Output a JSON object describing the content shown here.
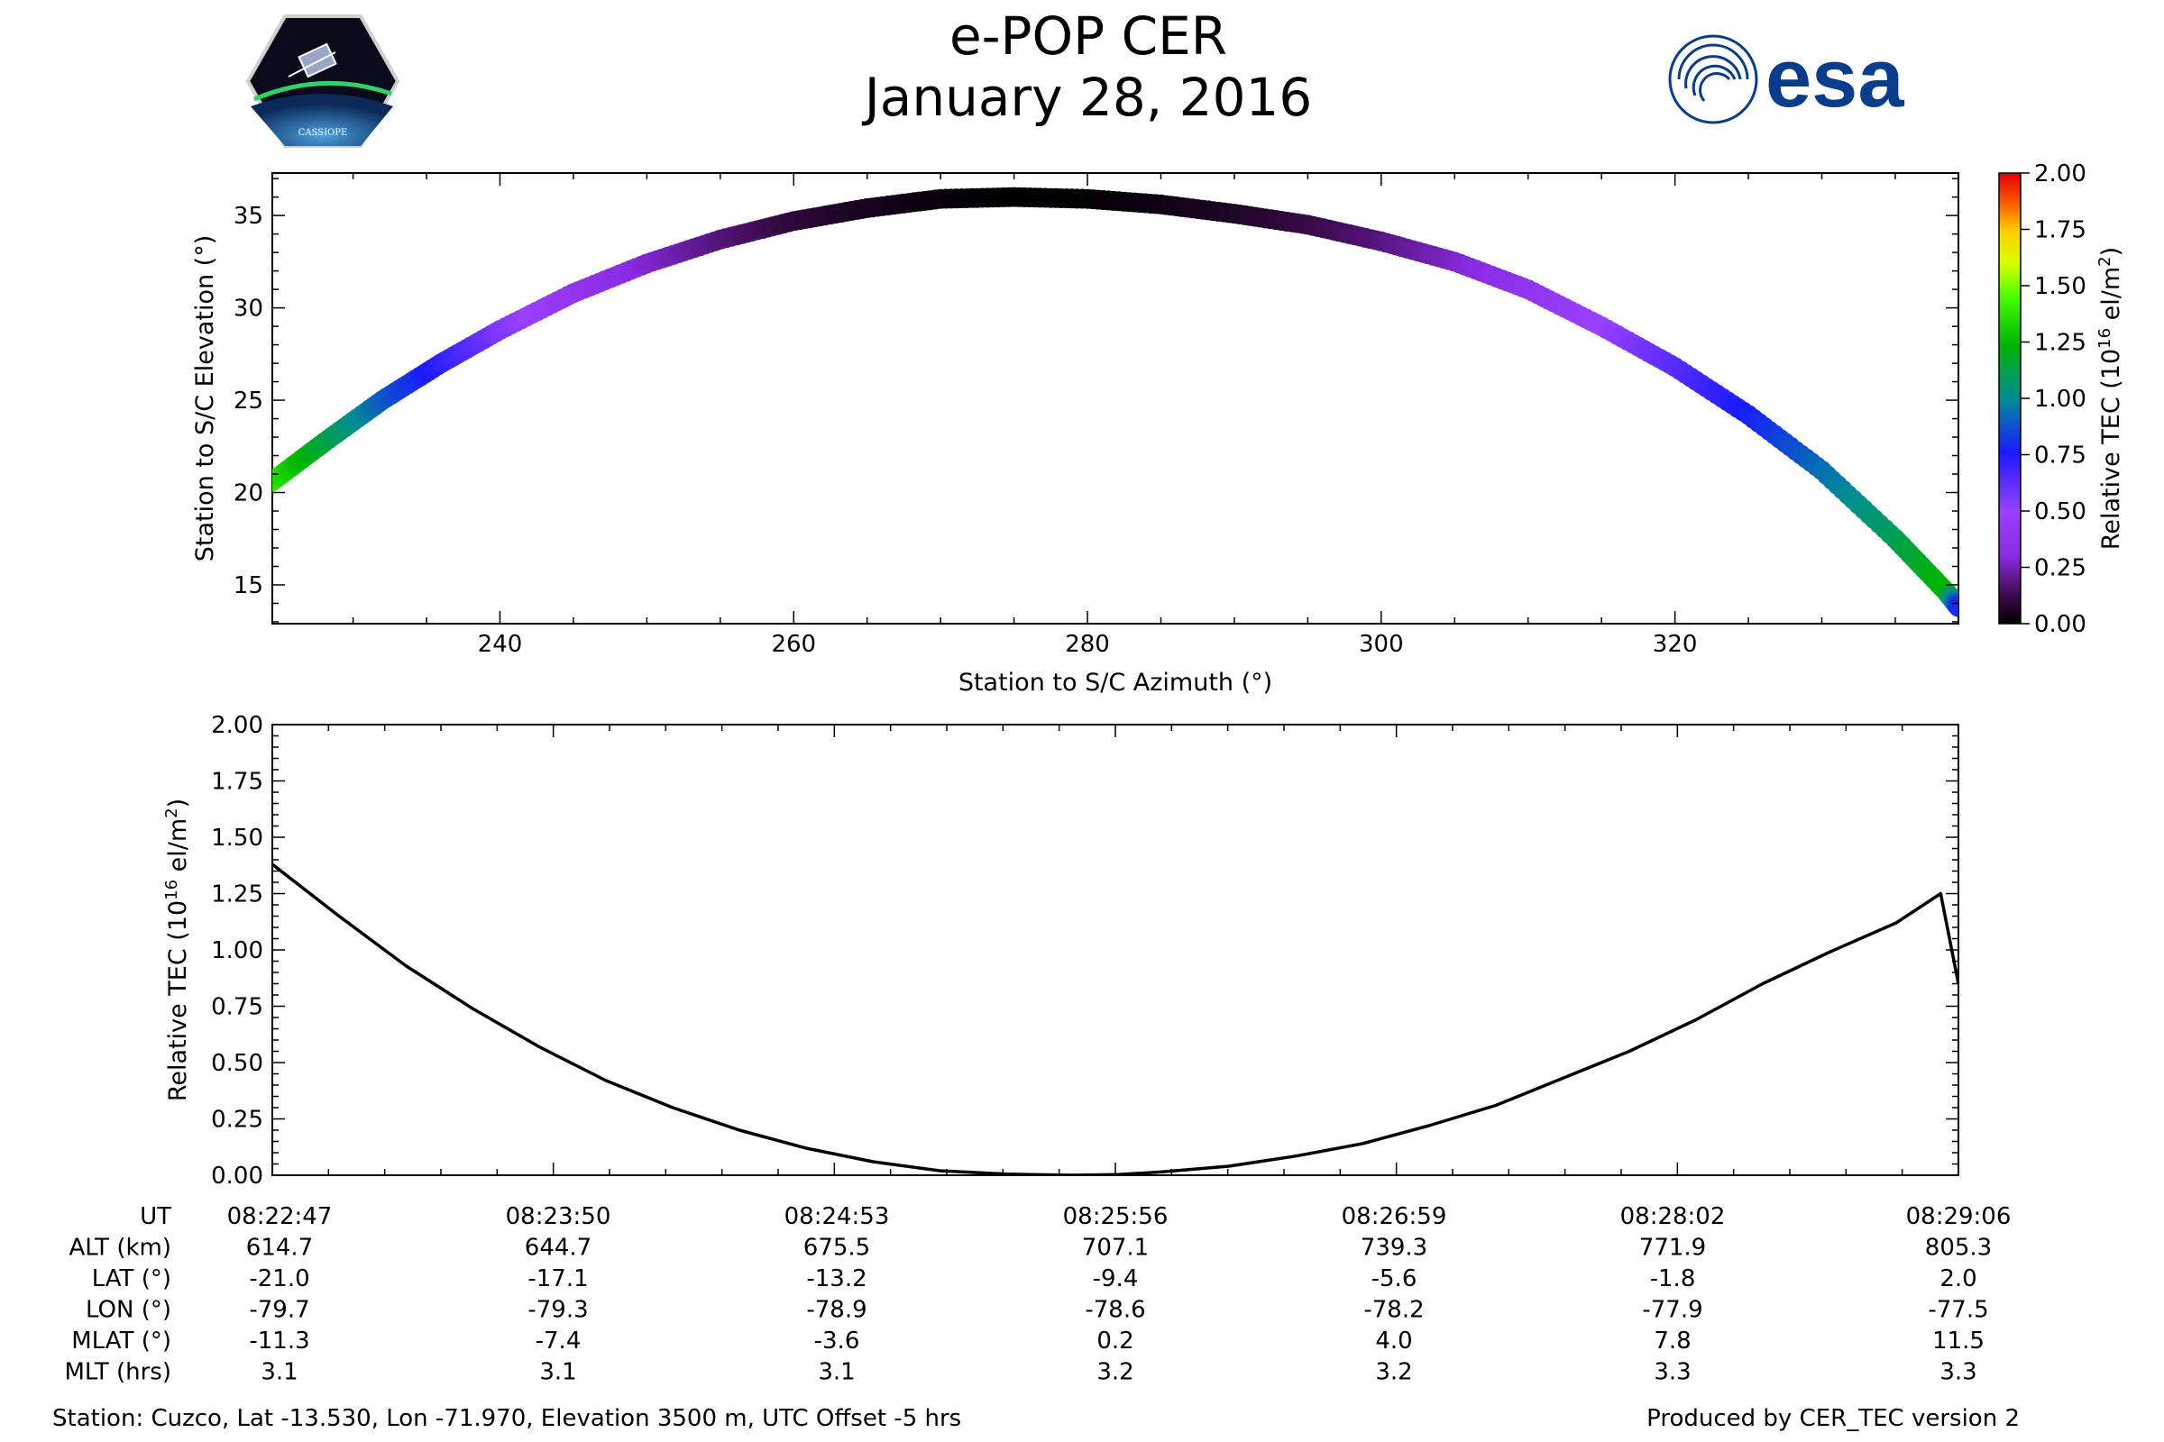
{
  "header": {
    "title": "e-POP CER",
    "date": "January 28, 2016",
    "left_logo": {
      "icon": "cassiope-mission-logo",
      "text": "CASSIOPE"
    },
    "right_logo": {
      "icon": "esa-logo",
      "text": "esa",
      "color": "#0a3c8c"
    }
  },
  "chart_data": [
    {
      "type": "scatter",
      "title": "",
      "xlabel": "Station to S/C Azimuth (°)",
      "ylabel": "Station to S/C Elevation (°)",
      "xlim": [
        224.5,
        339.3
      ],
      "ylim": [
        12.9,
        37.3
      ],
      "xticks": [
        240,
        260,
        280,
        300,
        320
      ],
      "yticks": [
        15,
        20,
        25,
        30,
        35
      ],
      "grid": false,
      "colorbar": {
        "label": "Relative TEC (10^16 el/m^2)",
        "label_main": "Relative TEC (10",
        "label_exp": "16",
        "label_unit": " el/m",
        "label_exp2": "2",
        "label_close": ")",
        "range": [
          0.0,
          2.0
        ],
        "ticks": [
          "2.00",
          "1.75",
          "1.50",
          "1.25",
          "1.00",
          "0.75",
          "0.50",
          "0.25",
          "0.00"
        ],
        "colormap": "nipy_spectral"
      },
      "points": [
        {
          "az": 224.5,
          "el": 20.6,
          "tec": 1.38
        },
        {
          "az": 228,
          "el": 22.7,
          "tec": 1.15
        },
        {
          "az": 232,
          "el": 25.0,
          "tec": 0.9
        },
        {
          "az": 236,
          "el": 27.0,
          "tec": 0.72
        },
        {
          "az": 240,
          "el": 28.8,
          "tec": 0.56
        },
        {
          "az": 245,
          "el": 30.8,
          "tec": 0.4
        },
        {
          "az": 250,
          "el": 32.4,
          "tec": 0.28
        },
        {
          "az": 255,
          "el": 33.7,
          "tec": 0.18
        },
        {
          "az": 260,
          "el": 34.7,
          "tec": 0.1
        },
        {
          "az": 265,
          "el": 35.4,
          "tec": 0.05
        },
        {
          "az": 270,
          "el": 35.9,
          "tec": 0.02
        },
        {
          "az": 275,
          "el": 36.0,
          "tec": 0.0
        },
        {
          "az": 280,
          "el": 35.9,
          "tec": 0.01
        },
        {
          "az": 285,
          "el": 35.6,
          "tec": 0.03
        },
        {
          "az": 290,
          "el": 35.1,
          "tec": 0.06
        },
        {
          "az": 295,
          "el": 34.5,
          "tec": 0.11
        },
        {
          "az": 300,
          "el": 33.6,
          "tec": 0.18
        },
        {
          "az": 305,
          "el": 32.5,
          "tec": 0.27
        },
        {
          "az": 310,
          "el": 31.0,
          "tec": 0.38
        },
        {
          "az": 315,
          "el": 29.0,
          "tec": 0.5
        },
        {
          "az": 320,
          "el": 26.8,
          "tec": 0.63
        },
        {
          "az": 325,
          "el": 24.2,
          "tec": 0.77
        },
        {
          "az": 330,
          "el": 21.2,
          "tec": 0.93
        },
        {
          "az": 335,
          "el": 17.5,
          "tec": 1.1
        },
        {
          "az": 338.5,
          "el": 14.6,
          "tec": 1.25
        },
        {
          "az": 339.3,
          "el": 13.8,
          "tec": 0.8
        }
      ]
    },
    {
      "type": "line",
      "title": "",
      "xlabel": "",
      "ylabel": "Relative TEC (10^16 el/m^2)",
      "ylabel_main": "Relative TEC (10",
      "ylabel_exp": "16",
      "ylabel_unit": " el/m",
      "ylabel_exp2": "2",
      "ylabel_close": ")",
      "xlim": [
        0,
        379
      ],
      "ylim": [
        0.0,
        2.0
      ],
      "yticks": [
        "0.00",
        "0.25",
        "0.50",
        "0.75",
        "1.00",
        "1.25",
        "1.50",
        "1.75",
        "2.00"
      ],
      "grid": false,
      "x": [
        0,
        15,
        30,
        45,
        60,
        75,
        90,
        105,
        120,
        135,
        150,
        165,
        180,
        190,
        200,
        215,
        230,
        245,
        260,
        275,
        290,
        305,
        320,
        335,
        350,
        365,
        375,
        379
      ],
      "y": [
        1.38,
        1.15,
        0.93,
        0.74,
        0.57,
        0.42,
        0.3,
        0.2,
        0.12,
        0.06,
        0.02,
        0.005,
        0.0,
        0.003,
        0.015,
        0.04,
        0.085,
        0.14,
        0.22,
        0.31,
        0.43,
        0.55,
        0.69,
        0.85,
        0.99,
        1.12,
        1.25,
        0.85
      ]
    }
  ],
  "table": {
    "rows": [
      {
        "label": "UT",
        "values": [
          "08:22:47",
          "08:23:50",
          "08:24:53",
          "08:25:56",
          "08:26:59",
          "08:28:02",
          "08:29:06"
        ]
      },
      {
        "label": "ALT (km)",
        "values": [
          "614.7",
          "644.7",
          "675.5",
          "707.1",
          "739.3",
          "771.9",
          "805.3"
        ]
      },
      {
        "label": "LAT (°)",
        "values": [
          "-21.0",
          "-17.1",
          "-13.2",
          "-9.4",
          "-5.6",
          "-1.8",
          "2.0"
        ]
      },
      {
        "label": "LON (°)",
        "values": [
          "-79.7",
          "-79.3",
          "-78.9",
          "-78.6",
          "-78.2",
          "-77.9",
          "-77.5"
        ]
      },
      {
        "label": "MLAT (°)",
        "values": [
          "-11.3",
          "-7.4",
          "-3.6",
          "0.2",
          "4.0",
          "7.8",
          "11.5"
        ]
      },
      {
        "label": "MLT (hrs)",
        "values": [
          "3.1",
          "3.1",
          "3.1",
          "3.2",
          "3.2",
          "3.3",
          "3.3"
        ]
      }
    ]
  },
  "footer": {
    "station": "Station: Cuzco, Lat -13.530, Lon -71.970, Elevation 3500 m, UTC Offset -5 hrs",
    "produced_by": "Produced by CER_TEC version 2"
  }
}
